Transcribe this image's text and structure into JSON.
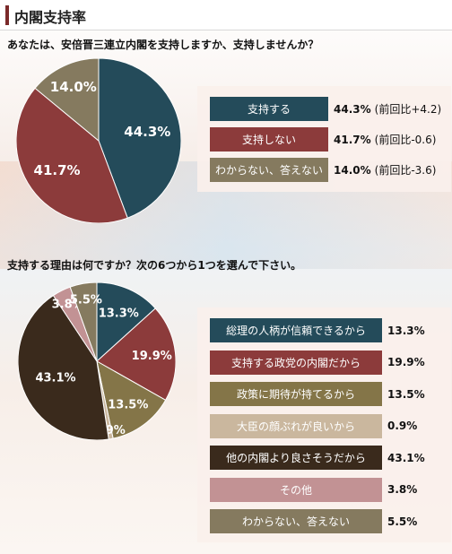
{
  "header": {
    "title": "内閣支持率"
  },
  "q1": {
    "text": "あなたは、安倍晋三連立内閣を支持しますか、支持しませんか？"
  },
  "q2": {
    "text": "支持する理由は何ですか？次の6つから1つを選んで下さい。"
  },
  "chart_data": [
    {
      "type": "pie",
      "categories": [
        "支持する",
        "支持しない",
        "わからない、答えない"
      ],
      "values": [
        44.3,
        41.7,
        14.0
      ],
      "value_labels": [
        "44.3%",
        "41.7%",
        "14.0%"
      ],
      "changes": [
        "(前回比+4.2)",
        "(前回比-0.6)",
        "(前回比-3.6)"
      ],
      "colors": [
        "#244b5a",
        "#8c3b3b",
        "#857a5f"
      ]
    },
    {
      "type": "pie",
      "categories": [
        "総理の人柄が信頼できるから",
        "支持する政党の内閣だから",
        "政策に期待が持てるから",
        "大臣の顔ぶれが良いから",
        "他の内閣より良さそうだから",
        "その他",
        "わからない、答えない"
      ],
      "values": [
        13.3,
        19.9,
        13.5,
        0.9,
        43.1,
        3.8,
        5.5
      ],
      "value_labels": [
        "13.3%",
        "19.9%",
        "13.5%",
        "0.9%",
        "43.1%",
        "3.8%",
        "5.5%"
      ],
      "colors": [
        "#244b5a",
        "#8c3b3b",
        "#847548",
        "#cab79e",
        "#3a2a1c",
        "#c29294",
        "#857a5f"
      ]
    }
  ]
}
